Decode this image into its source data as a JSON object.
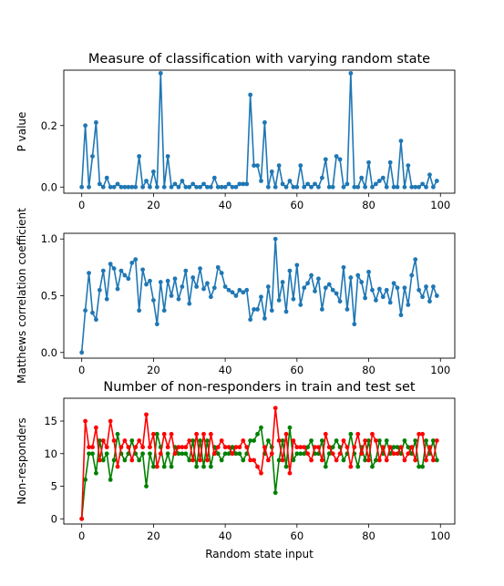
{
  "chart_data": [
    {
      "type": "line",
      "title": "Measure of classification with varying random state",
      "xlabel": "",
      "ylabel": "P value",
      "xlim": [
        -5,
        104
      ],
      "ylim": [
        -0.02,
        0.38
      ],
      "xticks": [
        0,
        20,
        40,
        60,
        80,
        100
      ],
      "yticks": [
        0.0,
        0.2
      ],
      "ytick_labels": [
        "0.0",
        "0.2"
      ],
      "grid": false,
      "series": [
        {
          "color": "#1f77b4",
          "x": [
            0,
            1,
            2,
            3,
            4,
            5,
            6,
            7,
            8,
            9,
            10,
            11,
            12,
            13,
            14,
            15,
            16,
            17,
            18,
            19,
            20,
            21,
            22,
            23,
            24,
            25,
            26,
            27,
            28,
            29,
            30,
            31,
            32,
            33,
            34,
            35,
            36,
            37,
            38,
            39,
            40,
            41,
            42,
            43,
            44,
            45,
            46,
            47,
            48,
            49,
            50,
            51,
            52,
            53,
            54,
            55,
            56,
            57,
            58,
            59,
            60,
            61,
            62,
            63,
            64,
            65,
            66,
            67,
            68,
            69,
            70,
            71,
            72,
            73,
            74,
            75,
            76,
            77,
            78,
            79,
            80,
            81,
            82,
            83,
            84,
            85,
            86,
            87,
            88,
            89,
            90,
            91,
            92,
            93,
            94,
            95,
            96,
            97,
            98,
            99
          ],
          "values": [
            0.0,
            0.2,
            0.0,
            0.1,
            0.21,
            0.01,
            0.0,
            0.03,
            0.0,
            0.0,
            0.01,
            0.0,
            0.0,
            0.0,
            0.0,
            0.0,
            0.1,
            0.0,
            0.02,
            0.0,
            0.05,
            0.0,
            0.37,
            0.0,
            0.1,
            0.0,
            0.01,
            0.0,
            0.02,
            0.0,
            0.0,
            0.01,
            0.0,
            0.0,
            0.01,
            0.0,
            0.0,
            0.03,
            0.0,
            0.0,
            0.0,
            0.01,
            0.0,
            0.0,
            0.01,
            0.01,
            0.01,
            0.3,
            0.07,
            0.07,
            0.02,
            0.21,
            0.0,
            0.05,
            0.0,
            0.07,
            0.01,
            0.0,
            0.02,
            0.0,
            0.0,
            0.07,
            0.0,
            0.01,
            0.0,
            0.01,
            0.0,
            0.03,
            0.09,
            0.0,
            0.0,
            0.1,
            0.09,
            0.0,
            0.01,
            0.37,
            0.0,
            0.0,
            0.03,
            0.0,
            0.08,
            0.0,
            0.01,
            0.02,
            0.03,
            0.0,
            0.08,
            0.0,
            0.0,
            0.15,
            0.0,
            0.07,
            0.0,
            0.0,
            0.0,
            0.01,
            0.0,
            0.04,
            0.0,
            0.02
          ]
        }
      ]
    },
    {
      "type": "line",
      "title": "",
      "xlabel": "",
      "ylabel": "Matthews correlation coefficient",
      "xlim": [
        -5,
        104
      ],
      "ylim": [
        -0.05,
        1.05
      ],
      "xticks": [
        0,
        20,
        40,
        60,
        80,
        100
      ],
      "yticks": [
        0.0,
        0.5,
        1.0
      ],
      "ytick_labels": [
        "0.0",
        "0.5",
        "1.0"
      ],
      "grid": false,
      "series": [
        {
          "color": "#1f77b4",
          "x": [
            0,
            1,
            2,
            3,
            4,
            5,
            6,
            7,
            8,
            9,
            10,
            11,
            12,
            13,
            14,
            15,
            16,
            17,
            18,
            19,
            20,
            21,
            22,
            23,
            24,
            25,
            26,
            27,
            28,
            29,
            30,
            31,
            32,
            33,
            34,
            35,
            36,
            37,
            38,
            39,
            40,
            41,
            42,
            43,
            44,
            45,
            46,
            47,
            48,
            49,
            50,
            51,
            52,
            53,
            54,
            55,
            56,
            57,
            58,
            59,
            60,
            61,
            62,
            63,
            64,
            65,
            66,
            67,
            68,
            69,
            70,
            71,
            72,
            73,
            74,
            75,
            76,
            77,
            78,
            79,
            80,
            81,
            82,
            83,
            84,
            85,
            86,
            87,
            88,
            89,
            90,
            91,
            92,
            93,
            94,
            95,
            96,
            97,
            98,
            99
          ],
          "values": [
            0.0,
            0.37,
            0.7,
            0.35,
            0.29,
            0.55,
            0.72,
            0.47,
            0.78,
            0.74,
            0.56,
            0.72,
            0.68,
            0.65,
            0.79,
            0.82,
            0.37,
            0.73,
            0.6,
            0.63,
            0.46,
            0.25,
            0.62,
            0.37,
            0.63,
            0.5,
            0.65,
            0.47,
            0.58,
            0.72,
            0.43,
            0.66,
            0.58,
            0.74,
            0.56,
            0.61,
            0.49,
            0.57,
            0.75,
            0.7,
            0.58,
            0.55,
            0.53,
            0.5,
            0.55,
            0.53,
            0.55,
            0.29,
            0.38,
            0.38,
            0.49,
            0.3,
            0.58,
            0.37,
            1.0,
            0.46,
            0.62,
            0.36,
            0.72,
            0.47,
            0.77,
            0.42,
            0.57,
            0.61,
            0.68,
            0.54,
            0.65,
            0.38,
            0.57,
            0.6,
            0.55,
            0.52,
            0.45,
            0.75,
            0.38,
            0.66,
            0.25,
            0.68,
            0.62,
            0.48,
            0.71,
            0.55,
            0.46,
            0.56,
            0.49,
            0.55,
            0.44,
            0.61,
            0.57,
            0.33,
            0.57,
            0.42,
            0.68,
            0.82,
            0.55,
            0.49,
            0.58,
            0.45,
            0.58,
            0.5
          ]
        }
      ]
    },
    {
      "type": "line",
      "title": "Number of non-responders in train and test set",
      "xlabel": "Random state input",
      "ylabel": "Non-responders",
      "xlim": [
        -5,
        104
      ],
      "ylim": [
        -0.8,
        18.5
      ],
      "xticks": [
        0,
        20,
        40,
        60,
        80,
        100
      ],
      "yticks": [
        0,
        5,
        10,
        15
      ],
      "ytick_labels": [
        "0",
        "5",
        "10",
        "15"
      ],
      "grid": false,
      "series": [
        {
          "color": "#008000",
          "x": [
            0,
            1,
            2,
            3,
            4,
            5,
            6,
            7,
            8,
            9,
            10,
            11,
            12,
            13,
            14,
            15,
            16,
            17,
            18,
            19,
            20,
            21,
            22,
            23,
            24,
            25,
            26,
            27,
            28,
            29,
            30,
            31,
            32,
            33,
            34,
            35,
            36,
            37,
            38,
            39,
            40,
            41,
            42,
            43,
            44,
            45,
            46,
            47,
            48,
            49,
            50,
            51,
            52,
            53,
            54,
            55,
            56,
            57,
            58,
            59,
            60,
            61,
            62,
            63,
            64,
            65,
            66,
            67,
            68,
            69,
            70,
            71,
            72,
            73,
            74,
            75,
            76,
            77,
            78,
            79,
            80,
            81,
            82,
            83,
            84,
            85,
            86,
            87,
            88,
            89,
            90,
            91,
            92,
            93,
            94,
            95,
            96,
            97,
            98,
            99
          ],
          "values": [
            0,
            6,
            10,
            10,
            7,
            12,
            9,
            10,
            6,
            9,
            13,
            10,
            9,
            10,
            12,
            10,
            9,
            10,
            5,
            10,
            8,
            13,
            11,
            8,
            10,
            8,
            11,
            10,
            10,
            10,
            9,
            12,
            8,
            12,
            8,
            12,
            8,
            11,
            10,
            9,
            10,
            10,
            11,
            10,
            10,
            9,
            10,
            12,
            12,
            13,
            14,
            10,
            12,
            11,
            4,
            9,
            12,
            8,
            14,
            9,
            10,
            10,
            10,
            11,
            12,
            10,
            10,
            12,
            8,
            10,
            11,
            12,
            11,
            9,
            10,
            13,
            10,
            8,
            11,
            9,
            12,
            8,
            9,
            12,
            10,
            12,
            10,
            11,
            11,
            10,
            12,
            11,
            10,
            12,
            8,
            8,
            12,
            10,
            12,
            9
          ]
        },
        {
          "color": "#ff0000",
          "x": [
            0,
            1,
            2,
            3,
            4,
            5,
            6,
            7,
            8,
            9,
            10,
            11,
            12,
            13,
            14,
            15,
            16,
            17,
            18,
            19,
            20,
            21,
            22,
            23,
            24,
            25,
            26,
            27,
            28,
            29,
            30,
            31,
            32,
            33,
            34,
            35,
            36,
            37,
            38,
            39,
            40,
            41,
            42,
            43,
            44,
            45,
            46,
            47,
            48,
            49,
            50,
            51,
            52,
            53,
            54,
            55,
            56,
            57,
            58,
            59,
            60,
            61,
            62,
            63,
            64,
            65,
            66,
            67,
            68,
            69,
            70,
            71,
            72,
            73,
            74,
            75,
            76,
            77,
            78,
            79,
            80,
            81,
            82,
            83,
            84,
            85,
            86,
            87,
            88,
            89,
            90,
            91,
            92,
            93,
            94,
            95,
            96,
            97,
            98,
            99
          ],
          "values": [
            0,
            15,
            11,
            11,
            14,
            9,
            12,
            11,
            15,
            12,
            8,
            11,
            12,
            11,
            9,
            11,
            12,
            11,
            16,
            11,
            13,
            8,
            10,
            13,
            11,
            13,
            10,
            11,
            11,
            11,
            12,
            9,
            13,
            9,
            13,
            9,
            13,
            10,
            11,
            12,
            11,
            11,
            10,
            11,
            11,
            12,
            11,
            9,
            9,
            8,
            7,
            11,
            9,
            10,
            17,
            12,
            9,
            13,
            7,
            12,
            11,
            11,
            11,
            10,
            9,
            11,
            11,
            9,
            13,
            11,
            10,
            9,
            10,
            12,
            11,
            8,
            11,
            13,
            10,
            12,
            9,
            13,
            12,
            9,
            11,
            9,
            11,
            10,
            10,
            11,
            9,
            10,
            11,
            9,
            13,
            13,
            9,
            11,
            9,
            12
          ]
        }
      ]
    }
  ]
}
